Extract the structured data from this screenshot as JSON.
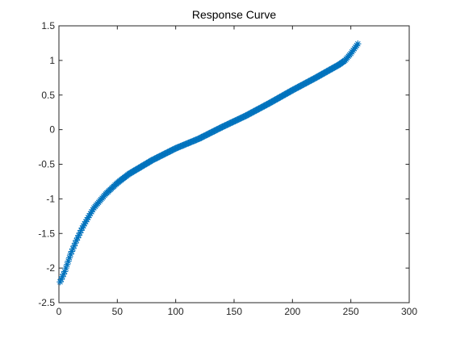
{
  "colors": {
    "series": "#0072BD",
    "axis": "#262626",
    "background": "#ffffff"
  },
  "chart_data": {
    "type": "scatter",
    "title": "Response Curve",
    "xlabel": "",
    "ylabel": "",
    "xlim": [
      0,
      300
    ],
    "ylim": [
      -2.5,
      1.5
    ],
    "xticks": [
      0,
      50,
      100,
      150,
      200,
      250,
      300
    ],
    "yticks": [
      -2.5,
      -2,
      -1.5,
      -1,
      -0.5,
      0,
      0.5,
      1,
      1.5
    ],
    "xtick_labels": [
      "0",
      "50",
      "100",
      "150",
      "200",
      "250",
      "300"
    ],
    "ytick_labels": [
      "-2.5",
      "-2",
      "-1.5",
      "-1",
      "-0.5",
      "0",
      "0.5",
      "1",
      "1.5"
    ],
    "grid": false,
    "legend": "none",
    "marker": "asterisk",
    "series": [
      {
        "x_start": 1,
        "x_end": 256,
        "x_step": 1,
        "curve_x": [
          1,
          5,
          10,
          15,
          20,
          25,
          30,
          40,
          50,
          60,
          80,
          100,
          120,
          140,
          160,
          180,
          200,
          220,
          240,
          245,
          250,
          256
        ],
        "curve_y": [
          -2.2,
          -2.05,
          -1.8,
          -1.6,
          -1.42,
          -1.27,
          -1.13,
          -0.93,
          -0.77,
          -0.64,
          -0.44,
          -0.27,
          -0.13,
          0.04,
          0.2,
          0.38,
          0.57,
          0.75,
          0.94,
          1.0,
          1.1,
          1.24
        ]
      }
    ]
  }
}
